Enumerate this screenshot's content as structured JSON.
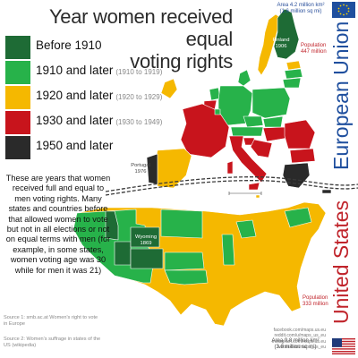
{
  "title": {
    "line1": "Year women received equal",
    "line2": "voting rights"
  },
  "legend": [
    {
      "label": "Before 1910",
      "range": "",
      "color": "#1e6b35"
    },
    {
      "label": "1910 and later",
      "range": "(1910 to 1919)",
      "color": "#27b24a"
    },
    {
      "label": "1920 and later",
      "range": "(1920 to 1929)",
      "color": "#f5b800"
    },
    {
      "label": "1930 and later",
      "range": "(1930 to 1949)",
      "color": "#c8141c"
    },
    {
      "label": "1950 and later",
      "range": "",
      "color": "#2a2a2a"
    }
  ],
  "note": "These are years that women received full and equal to men voting rights. Many states and countries before that allowed women to vote but not in all elections or not on equal terms with men (for example, in some states, women voting age was 30 while for men it was 21)",
  "sources": {
    "s1": "Source 1: smb.ac.at Women's right to vote in Europe",
    "s2": "Source 2: Women's suffrage in states of the US (wikipedia)"
  },
  "eu": {
    "label": "European Union",
    "area_line1": "Area 4.2 million km²",
    "area_line2": "(1.6 million sq mi)",
    "population_line1": "Population",
    "population_line2": "447 million",
    "finland": {
      "name": "Finland",
      "year": "1906"
    },
    "portugal": {
      "name": "Portugal",
      "year": "1976"
    }
  },
  "us": {
    "label": "United States",
    "population_line1": "Population",
    "population_line2": "333 million",
    "area_line1": "Area 9.8 million km²",
    "area_line2": "(3.8 million sq mi)",
    "wyoming": {
      "name": "Wyoming",
      "year": "1869"
    }
  },
  "credits": {
    "l1": "facebook.com/maps.us.eu",
    "l2": "reddit.com/u/maps_us_eu",
    "l3": "instagram.com/maps.us.eu",
    "l4": "twitter.com/maps_us_eu"
  },
  "colors": {
    "before1910": "#1e6b35",
    "y1910s": "#27b24a",
    "y1920s": "#f5b800",
    "y1930s": "#c8141c",
    "y1950plus": "#2a2a2a",
    "eu_blue": "#1f4f9e",
    "us_red": "#c0242b"
  }
}
